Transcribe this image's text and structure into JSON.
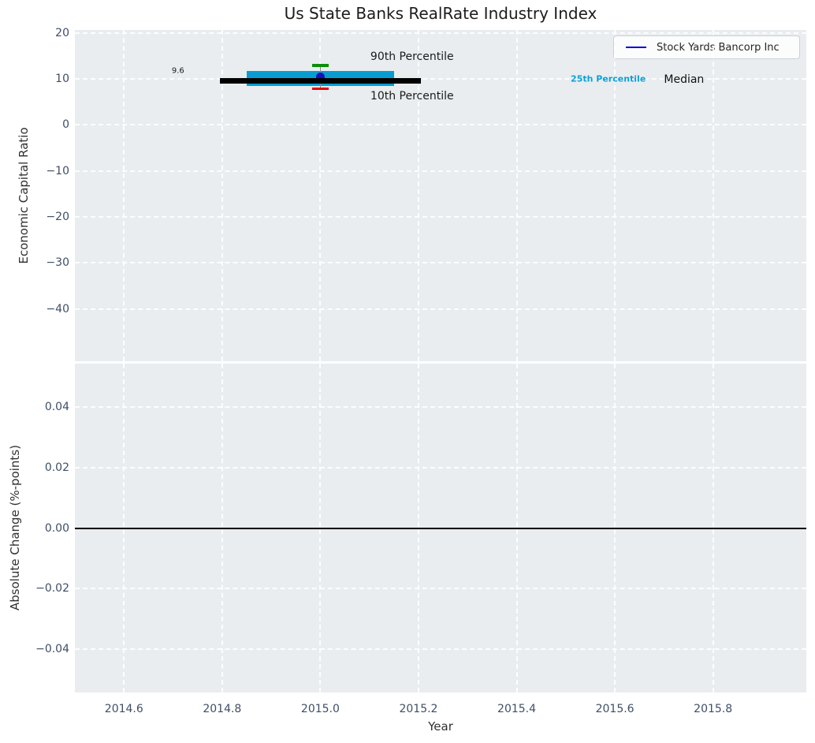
{
  "figure": {
    "title": "Us State Banks RealRate Industry Index"
  },
  "legend": {
    "label": "Stock Yards Bancorp Inc",
    "line_color": "#0000e0",
    "position": "upper right"
  },
  "colors": {
    "plot_bg": "#e9edf0",
    "grid": "rgba(255,255,255,0.85)",
    "tick_label": "#3f4e66",
    "axis_label": "#303030",
    "title": "#1c1c1c",
    "median": "#000000",
    "percentile_band": "#089dd1",
    "p90_cap": "#0a8f0a",
    "p10_cap": "#e60000",
    "company_dot": "#1111c2",
    "errorbar_line": "#888888",
    "zero_line": "#000000"
  },
  "chart_data": [
    {
      "type": "scatter",
      "title": "Us State Banks RealRate Industry Index",
      "xlabel": "Year",
      "ylabel": "Economic Capital Ratio",
      "xlim": [
        2014.5,
        2015.99
      ],
      "ylim": [
        -51.4,
        20.65
      ],
      "grid": true,
      "legend_position": "upper right",
      "xticks": [
        {
          "v": 2014.6,
          "label": "2014.6"
        },
        {
          "v": 2014.8,
          "label": "2014.8"
        },
        {
          "v": 2015.0,
          "label": "2015.0"
        },
        {
          "v": 2015.2,
          "label": "2015.2"
        },
        {
          "v": 2015.4,
          "label": "2015.4"
        },
        {
          "v": 2015.6,
          "label": "2015.6"
        },
        {
          "v": 2015.8,
          "label": "2015.8"
        }
      ],
      "yticks": [
        {
          "v": 20,
          "label": "20"
        },
        {
          "v": 10,
          "label": "10"
        },
        {
          "v": 0,
          "label": "0"
        },
        {
          "v": -10,
          "label": "−10"
        },
        {
          "v": -20,
          "label": "−20"
        },
        {
          "v": -30,
          "label": "−30"
        },
        {
          "v": -40,
          "label": "−40"
        }
      ],
      "series": {
        "company": {
          "name": "Stock Yards Bancorp Inc",
          "x": 2015.0,
          "value": 10.4,
          "marker": "dot"
        },
        "median": {
          "label": "Median",
          "value": 9.6,
          "x_span": [
            2014.795,
            2015.205
          ]
        },
        "percentile_band": {
          "label": "25th Percentile",
          "low": 8.4,
          "high": 11.7,
          "x_span": [
            2014.85,
            2015.15
          ]
        },
        "p90": {
          "label": "90th Percentile",
          "value": 12.9,
          "x": 2015.0,
          "cap_halfwidth": 0.017
        },
        "p10": {
          "label": "10th Percentile",
          "value": 7.9,
          "x": 2015.0,
          "cap_halfwidth": 0.017
        }
      },
      "annotations": [
        {
          "text": "9.6",
          "x": 2014.71,
          "y": 11.7,
          "size": 10,
          "color": "#1a1a1a",
          "anchor": "middle",
          "bold": false
        },
        {
          "text": "90th Percentile",
          "x": 2015.102,
          "y": 14.8,
          "size": 14,
          "color": "#1a1a1a",
          "anchor": "start",
          "bold": false
        },
        {
          "text": "10th Percentile",
          "x": 2015.102,
          "y": 6.3,
          "size": 14,
          "color": "#1a1a1a",
          "anchor": "start",
          "bold": false
        },
        {
          "text": "25th Percentile",
          "x": 2015.51,
          "y": 10.0,
          "size": 11,
          "color": "#0d9fd8",
          "anchor": "start",
          "bold": true
        },
        {
          "text": "Median",
          "x": 2015.7,
          "y": 9.8,
          "size": 14,
          "color": "#111111",
          "anchor": "start",
          "bold": false
        }
      ]
    },
    {
      "type": "line",
      "title": "",
      "xlabel": "Year",
      "ylabel": "Absolute Change (%-points)",
      "xlim": [
        2014.5,
        2015.99
      ],
      "ylim": [
        -0.0545,
        0.0545
      ],
      "grid": true,
      "zero_line": 0.0,
      "xticks": [
        {
          "v": 2014.6,
          "label": "2014.6"
        },
        {
          "v": 2014.8,
          "label": "2014.8"
        },
        {
          "v": 2015.0,
          "label": "2015.0"
        },
        {
          "v": 2015.2,
          "label": "2015.2"
        },
        {
          "v": 2015.4,
          "label": "2015.4"
        },
        {
          "v": 2015.6,
          "label": "2015.6"
        },
        {
          "v": 2015.8,
          "label": "2015.8"
        }
      ],
      "yticks": [
        {
          "v": 0.04,
          "label": "0.04"
        },
        {
          "v": 0.02,
          "label": "0.02"
        },
        {
          "v": 0.0,
          "label": "0.00"
        },
        {
          "v": -0.02,
          "label": "−0.02"
        },
        {
          "v": -0.04,
          "label": "−0.04"
        }
      ],
      "values": []
    }
  ]
}
